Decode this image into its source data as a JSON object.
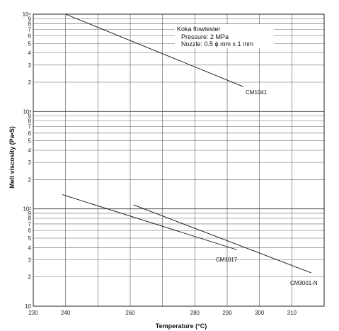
{
  "chart_data": {
    "type": "line",
    "title": "",
    "xlabel": "Temperature (°C)",
    "ylabel": "Melt viscosity (Pa•S)",
    "x_ticks": [
      230,
      240,
      250,
      260,
      270,
      280,
      290,
      300,
      310,
      320
    ],
    "x_tick_labels": [
      "230",
      "240",
      "",
      "260",
      "",
      "280",
      "290",
      "300",
      "310",
      ""
    ],
    "xlim": [
      230,
      320
    ],
    "ylim": [
      10,
      10000
    ],
    "y_scale": "log",
    "y_major_tick_labels": [
      {
        "value": 10000,
        "label": "10⁴"
      },
      {
        "value": 1000,
        "label": "10³"
      },
      {
        "value": 100,
        "label": "10²"
      },
      {
        "value": 10,
        "label": "10"
      }
    ],
    "y_minor_tick_labels": [
      "2",
      "3",
      "4",
      "5",
      "6",
      "7",
      "8",
      "9"
    ],
    "grid": true,
    "annotation_lines": [
      "Koka flowtester",
      "Pressure: 2 MPa",
      "Nozzle: 0.5 ϕ mm x 1 mm"
    ],
    "series": [
      {
        "name": "CM1041",
        "x": [
          240,
          295
        ],
        "y": [
          10000,
          1800
        ]
      },
      {
        "name": "CM1017",
        "x": [
          239,
          293
        ],
        "y": [
          140,
          38
        ]
      },
      {
        "name": "CM3001-N",
        "x": [
          261,
          316
        ],
        "y": [
          110,
          22
        ]
      }
    ]
  }
}
